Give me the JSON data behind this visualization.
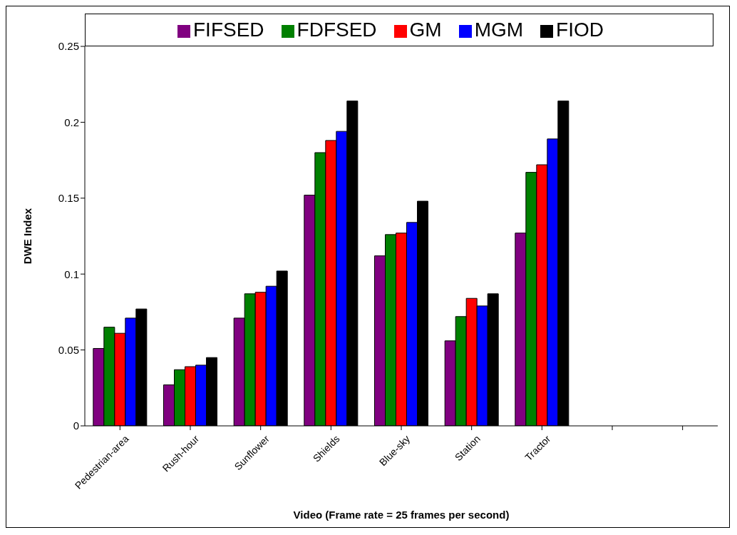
{
  "chart_data": {
    "type": "bar",
    "xlabel": "Video (Frame rate = 25 frames per second)",
    "ylabel": "DWE Index",
    "categories": [
      "Pedestrian-area",
      "Rush-hour",
      "Sunflower",
      "Shields",
      "Blue-sky",
      "Station",
      "Tractor",
      null,
      null
    ],
    "series": [
      {
        "name": "FIFSED",
        "color": "#800080",
        "values": [
          0.051,
          0.027,
          0.071,
          0.152,
          0.112,
          0.056,
          0.127,
          null,
          null
        ]
      },
      {
        "name": "FDFSED",
        "color": "#008000",
        "values": [
          0.065,
          0.037,
          0.087,
          0.18,
          0.126,
          0.072,
          0.167,
          null,
          null
        ]
      },
      {
        "name": "GM",
        "color": "#ff0000",
        "values": [
          0.061,
          0.039,
          0.088,
          0.188,
          0.127,
          0.084,
          0.172,
          null,
          null
        ]
      },
      {
        "name": "MGM",
        "color": "#0000ff",
        "values": [
          0.071,
          0.04,
          0.092,
          0.194,
          0.134,
          0.079,
          0.189,
          null,
          null
        ]
      },
      {
        "name": "FIOD",
        "color": "#000000",
        "values": [
          0.077,
          0.045,
          0.102,
          0.214,
          0.148,
          0.087,
          0.214,
          null,
          null
        ]
      }
    ],
    "ylim": [
      0,
      0.25
    ],
    "yticks": [
      0,
      0.05,
      0.1,
      0.15,
      0.2,
      0.25
    ],
    "grid": false,
    "legend": "top"
  }
}
